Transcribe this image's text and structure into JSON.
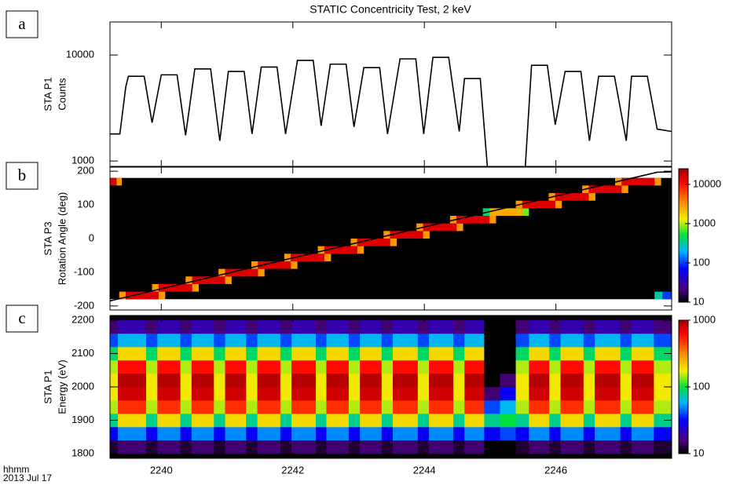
{
  "chart_data": [
    {
      "type": "line",
      "title": "STATIC Concentricity Test, 2 keV",
      "panel_label": "a",
      "ylabel": [
        "STA P1",
        "Counts"
      ],
      "log_y": true,
      "show_xticklabels": false,
      "xlim": [
        2239.22,
        2247.76
      ],
      "xticks": [
        2240,
        2242,
        2244,
        2246
      ],
      "ylim": [
        890,
        20500
      ],
      "yticks": [
        1000,
        10000
      ],
      "color": "#000000",
      "x": [
        2239.22,
        2239.37,
        2239.46,
        2239.5,
        2239.74,
        2239.86,
        2240.0,
        2240.24,
        2240.37,
        2240.51,
        2240.75,
        2240.89,
        2241.02,
        2241.26,
        2241.38,
        2241.52,
        2241.76,
        2241.89,
        2242.07,
        2242.31,
        2242.43,
        2242.57,
        2242.81,
        2242.93,
        2243.08,
        2243.32,
        2243.44,
        2243.63,
        2243.87,
        2243.99,
        2244.13,
        2244.37,
        2244.53,
        2244.61,
        2244.85,
        2244.99,
        2245.25,
        2245.51,
        2245.63,
        2245.87,
        2245.99,
        2246.14,
        2246.38,
        2246.51,
        2246.65,
        2246.89,
        2247.07,
        2247.15,
        2247.39,
        2247.54,
        2247.76
      ],
      "values": [
        1800,
        1800,
        5000,
        6300,
        6300,
        2300,
        6500,
        6500,
        1750,
        7400,
        7400,
        1550,
        7000,
        7000,
        1800,
        7700,
        7700,
        1800,
        8900,
        8900,
        2150,
        8200,
        8200,
        2100,
        7600,
        7600,
        1800,
        9200,
        9200,
        1800,
        9500,
        9500,
        1900,
        6000,
        6000,
        500,
        null,
        500,
        8000,
        8000,
        2200,
        7000,
        7000,
        1550,
        6300,
        6300,
        1550,
        6300,
        6300,
        2000,
        1900
      ]
    },
    {
      "type": "heatmap",
      "panel_label": "b",
      "ylabel": [
        "STA P3",
        "Rotation Angle (deg)"
      ],
      "show_xticklabels": false,
      "xlim": [
        2239.22,
        2247.76
      ],
      "xticks": [
        2240,
        2242,
        2244,
        2246
      ],
      "ylim": [
        -212,
        212
      ],
      "yticks": [
        -200,
        -100,
        0,
        100,
        200
      ],
      "colormap": "rainbow",
      "colorbar": {
        "lim": [
          10,
          25000
        ],
        "ticks": [
          10,
          100,
          1000,
          10000
        ]
      },
      "rows": [
        {
          "y": [
            -180,
            -157.5
          ],
          "x": [
            2239.36,
            2239.46,
            2239.96,
            2240.06
          ],
          "values": [
            3000,
            15000,
            3000
          ]
        },
        {
          "y": [
            -157.5,
            -135
          ],
          "x": [
            2239.86,
            2239.96,
            2240.47,
            2240.57
          ],
          "values": [
            3000,
            15000,
            3000
          ]
        },
        {
          "y": [
            -135,
            -112.5
          ],
          "x": [
            2240.37,
            2240.47,
            2240.97,
            2241.07
          ],
          "values": [
            3000,
            15000,
            3000
          ]
        },
        {
          "y": [
            -112.5,
            -90
          ],
          "x": [
            2240.87,
            2240.97,
            2241.47,
            2241.57
          ],
          "values": [
            3000,
            15000,
            3000
          ]
        },
        {
          "y": [
            -90,
            -67.5
          ],
          "x": [
            2241.37,
            2241.47,
            2241.97,
            2242.07
          ],
          "values": [
            3000,
            15000,
            3000
          ]
        },
        {
          "y": [
            -67.5,
            -45
          ],
          "x": [
            2241.87,
            2241.97,
            2242.48,
            2242.58
          ],
          "values": [
            3000,
            15000,
            3000
          ]
        },
        {
          "y": [
            -45,
            -22.5
          ],
          "x": [
            2242.38,
            2242.48,
            2242.98,
            2243.08
          ],
          "values": [
            3000,
            15000,
            3000
          ]
        },
        {
          "y": [
            -22.5,
            0
          ],
          "x": [
            2242.88,
            2242.98,
            2243.48,
            2243.58
          ],
          "values": [
            3000,
            15000,
            3000
          ]
        },
        {
          "y": [
            0,
            22.5
          ],
          "x": [
            2243.38,
            2243.48,
            2243.98,
            2244.08
          ],
          "values": [
            3000,
            15000,
            3000
          ]
        },
        {
          "y": [
            22.5,
            45
          ],
          "x": [
            2243.88,
            2243.98,
            2244.49,
            2244.59
          ],
          "values": [
            3000,
            15000,
            3000
          ]
        },
        {
          "y": [
            45,
            67.5
          ],
          "x": [
            2244.39,
            2244.49,
            2244.99,
            2245.09
          ],
          "values": [
            3000,
            15000,
            3000
          ]
        },
        {
          "y": [
            67.5,
            90
          ],
          "x": [
            2244.89,
            2244.99,
            2245.49,
            2245.59
          ],
          "values": [
            400,
            2500,
            800
          ]
        },
        {
          "y": [
            90,
            112.5
          ],
          "x": [
            2245.39,
            2245.49,
            2245.99,
            2246.09
          ],
          "values": [
            3000,
            15000,
            3000
          ]
        },
        {
          "y": [
            112.5,
            135
          ],
          "x": [
            2245.89,
            2245.99,
            2246.5,
            2246.6
          ],
          "values": [
            3000,
            15000,
            3000
          ]
        },
        {
          "y": [
            135,
            157.5
          ],
          "x": [
            2246.4,
            2246.5,
            2247.0,
            2247.1
          ],
          "values": [
            3000,
            15000,
            3000
          ]
        },
        {
          "y": [
            157.5,
            180
          ],
          "x": [
            2246.9,
            2247.0,
            2247.5,
            2247.6
          ],
          "values": [
            3000,
            15000,
            3000
          ]
        },
        {
          "y": [
            157.5,
            180
          ],
          "x": [
            2239.22,
            2239.32,
            2239.4
          ],
          "values": [
            15000,
            3000
          ]
        },
        {
          "y": [
            -180,
            -157.5
          ],
          "x": [
            2247.5,
            2247.62,
            2247.76
          ],
          "values": [
            300,
            100
          ]
        }
      ],
      "line": {
        "color": "#000000",
        "x": [
          2239.22,
          2247.54,
          2247.76
        ],
        "values": [
          -185,
          197,
          198
        ]
      }
    },
    {
      "type": "heatmap",
      "panel_label": "c",
      "ylabel": [
        "STA P1",
        "Energy (eV)"
      ],
      "xlabel": "hhmm",
      "date": "2013 Jul 17",
      "show_xticklabels": true,
      "xlim": [
        2239.22,
        2247.76
      ],
      "xticks": [
        2240,
        2242,
        2244,
        2246
      ],
      "ylim": [
        1786,
        2214
      ],
      "yticks": [
        1800,
        1900,
        2000,
        2100,
        2200
      ],
      "colormap": "rainbow",
      "colorbar": {
        "lim": [
          10,
          1000
        ],
        "ticks": [
          10,
          100,
          1000
        ]
      },
      "x": [
        2239.22,
        2239.34,
        2239.77,
        2239.94,
        2240.29,
        2240.46,
        2240.8,
        2240.97,
        2241.29,
        2241.46,
        2241.81,
        2241.98,
        2242.35,
        2242.51,
        2242.85,
        2243.02,
        2243.35,
        2243.52,
        2243.9,
        2244.07,
        2244.44,
        2244.61,
        2244.91,
        2245.15,
        2245.39,
        2245.59,
        2245.9,
        2246.07,
        2246.42,
        2246.59,
        2246.98,
        2247.15,
        2247.49,
        2247.76
      ],
      "y": [
        1800,
        1840,
        1880,
        1920,
        1960,
        2000,
        2040,
        2080,
        2120,
        2160,
        2200
      ],
      "values": [
        [
          12,
          15,
          12,
          15,
          12,
          15,
          12,
          15,
          12,
          15,
          12,
          15,
          12,
          15,
          12,
          15,
          12,
          15,
          12,
          15,
          12,
          15,
          10,
          10,
          12,
          15,
          12,
          15,
          12,
          15,
          12,
          15,
          12
        ],
        [
          30,
          50,
          30,
          50,
          30,
          50,
          30,
          50,
          30,
          50,
          30,
          50,
          30,
          50,
          30,
          50,
          30,
          50,
          30,
          50,
          30,
          50,
          30,
          40,
          30,
          50,
          30,
          50,
          30,
          50,
          30,
          50,
          30
        ],
        [
          80,
          200,
          80,
          200,
          80,
          200,
          80,
          200,
          80,
          200,
          80,
          200,
          80,
          200,
          80,
          200,
          80,
          200,
          80,
          200,
          80,
          200,
          80,
          100,
          80,
          200,
          80,
          200,
          80,
          200,
          80,
          200,
          80
        ],
        [
          150,
          500,
          150,
          500,
          150,
          500,
          150,
          500,
          150,
          500,
          150,
          500,
          150,
          500,
          150,
          500,
          150,
          500,
          150,
          500,
          150,
          500,
          40,
          60,
          150,
          500,
          150,
          500,
          150,
          500,
          150,
          500,
          150
        ],
        [
          180,
          800,
          180,
          800,
          180,
          800,
          180,
          800,
          180,
          800,
          180,
          800,
          180,
          800,
          180,
          800,
          180,
          800,
          180,
          800,
          180,
          800,
          15,
          30,
          180,
          800,
          180,
          800,
          180,
          800,
          180,
          800,
          180
        ],
        [
          180,
          900,
          180,
          900,
          180,
          900,
          180,
          900,
          180,
          900,
          180,
          900,
          180,
          900,
          180,
          900,
          180,
          900,
          180,
          900,
          180,
          900,
          10,
          15,
          180,
          900,
          180,
          900,
          180,
          900,
          180,
          900,
          180
        ],
        [
          150,
          600,
          150,
          600,
          150,
          600,
          150,
          600,
          150,
          600,
          150,
          600,
          150,
          600,
          150,
          600,
          150,
          600,
          150,
          600,
          150,
          600,
          10,
          10,
          150,
          600,
          150,
          600,
          150,
          600,
          150,
          600,
          150
        ],
        [
          90,
          200,
          90,
          200,
          90,
          200,
          90,
          200,
          90,
          200,
          90,
          200,
          90,
          200,
          90,
          200,
          90,
          200,
          90,
          200,
          90,
          200,
          10,
          10,
          90,
          200,
          90,
          200,
          90,
          200,
          90,
          200,
          90
        ],
        [
          40,
          60,
          40,
          60,
          40,
          60,
          40,
          60,
          40,
          60,
          40,
          60,
          40,
          60,
          40,
          60,
          40,
          60,
          40,
          60,
          40,
          60,
          10,
          10,
          40,
          60,
          40,
          60,
          40,
          60,
          40,
          60,
          40
        ],
        [
          15,
          20,
          15,
          20,
          15,
          20,
          15,
          20,
          15,
          20,
          15,
          20,
          15,
          20,
          15,
          20,
          15,
          20,
          15,
          20,
          15,
          20,
          10,
          10,
          15,
          20,
          15,
          20,
          15,
          20,
          15,
          20,
          15
        ]
      ]
    }
  ]
}
